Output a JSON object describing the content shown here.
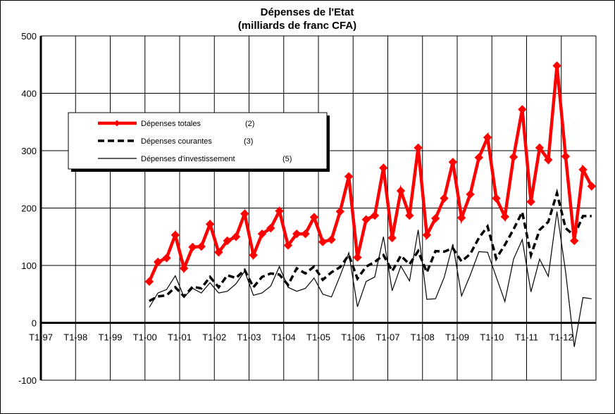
{
  "chart_data": {
    "type": "line",
    "title": "Dépenses de l'Etat",
    "subtitle": "(milliards de franc CFA)",
    "ylim": [
      -100,
      500
    ],
    "yticks": [
      -100,
      0,
      100,
      200,
      300,
      400,
      500
    ],
    "grid": true,
    "legend_position": "upper-left",
    "x_categories": [
      "T1-97",
      "T2-97",
      "T3-97",
      "T4-97",
      "T1-98",
      "T2-98",
      "T3-98",
      "T4-98",
      "T1-99",
      "T2-99",
      "T3-99",
      "T4-99",
      "T1-00",
      "T2-00",
      "T3-00",
      "T4-00",
      "T1-01",
      "T2-01",
      "T3-01",
      "T4-01",
      "T1-02",
      "T2-02",
      "T3-02",
      "T4-02",
      "T1-03",
      "T2-03",
      "T3-03",
      "T4-03",
      "T1-04",
      "T2-04",
      "T3-04",
      "T4-04",
      "T1-05",
      "T2-05",
      "T3-05",
      "T4-05",
      "T1-06",
      "T2-06",
      "T3-06",
      "T4-06",
      "T1-07",
      "T2-07",
      "T3-07",
      "T4-07",
      "T1-08",
      "T2-08",
      "T3-08",
      "T4-08",
      "T1-09",
      "T2-09",
      "T3-09",
      "T4-09",
      "T1-10",
      "T2-10",
      "T3-10",
      "T4-10",
      "T1-11",
      "T2-11",
      "T3-11",
      "T4-11",
      "T1-12",
      "T2-12",
      "T3-12",
      "T4-12"
    ],
    "x_tick_labels": [
      "T1-97",
      "T1-98",
      "T1-99",
      "T1-00",
      "T1-01",
      "T1-02",
      "T1-03",
      "T1-04",
      "T1-05",
      "T1-06",
      "T1-07",
      "T1-08",
      "T1-09",
      "T1-10",
      "T1-11",
      "T1-12"
    ],
    "series": [
      {
        "name": "Dépenses totales",
        "legend_note": "(2)",
        "color": "#ff0000",
        "style": "thick-diamond",
        "values": [
          null,
          null,
          null,
          null,
          null,
          null,
          null,
          null,
          null,
          null,
          null,
          null,
          72,
          106,
          113,
          153,
          95,
          132,
          133,
          172,
          123,
          143,
          150,
          190,
          118,
          155,
          165,
          195,
          135,
          155,
          155,
          184,
          141,
          145,
          194,
          255,
          114,
          180,
          187,
          270,
          148,
          230,
          187,
          305,
          153,
          182,
          217,
          280,
          183,
          224,
          288,
          323,
          217,
          185,
          289,
          372,
          211,
          305,
          284,
          448,
          290,
          143,
          267,
          238
        ]
      },
      {
        "name": "Dépenses courantes",
        "legend_note": "(3)",
        "color": "#000000",
        "style": "dashed",
        "values": [
          null,
          null,
          null,
          null,
          null,
          null,
          null,
          null,
          null,
          null,
          null,
          null,
          38,
          46,
          48,
          62,
          46,
          63,
          60,
          80,
          62,
          83,
          78,
          92,
          62,
          80,
          86,
          84,
          66,
          95,
          86,
          98,
          75,
          88,
          97,
          118,
          77,
          98,
          106,
          118,
          90,
          117,
          102,
          125,
          88,
          125,
          124,
          130,
          107,
          120,
          148,
          168,
          112,
          136,
          163,
          193,
          118,
          162,
          176,
          226,
          165,
          152,
          186,
          186
        ]
      },
      {
        "name": "Dépenses d'investissement",
        "legend_note": "(5)",
        "color": "#000000",
        "style": "thin",
        "values": [
          null,
          null,
          null,
          null,
          null,
          null,
          null,
          null,
          null,
          null,
          null,
          null,
          27,
          52,
          58,
          82,
          45,
          60,
          52,
          70,
          52,
          55,
          68,
          90,
          48,
          52,
          64,
          98,
          62,
          55,
          60,
          78,
          50,
          45,
          82,
          122,
          28,
          72,
          80,
          150,
          56,
          99,
          73,
          162,
          41,
          42,
          79,
          137,
          47,
          83,
          124,
          123,
          80,
          37,
          111,
          145,
          54,
          111,
          81,
          194,
          89,
          -42,
          44,
          42
        ]
      }
    ]
  }
}
